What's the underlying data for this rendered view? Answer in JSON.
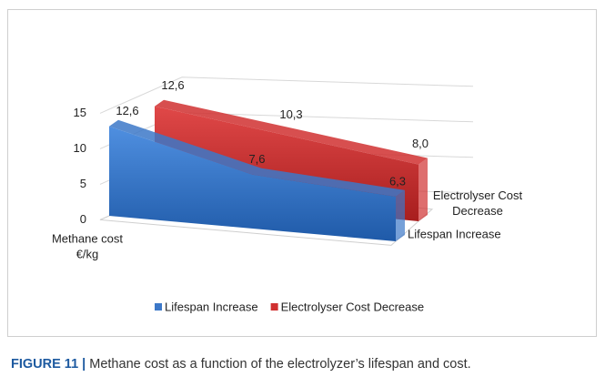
{
  "chart_data": {
    "type": "area3d",
    "categories": [
      null,
      null,
      null
    ],
    "ylabel_lines": [
      "Methane cost",
      "€/kg"
    ],
    "ylim": [
      0,
      15
    ],
    "yticks": [
      0,
      5,
      10,
      15
    ],
    "grid": true,
    "legend": "bottom",
    "series": [
      {
        "name": "Lifespan Increase",
        "color": "#3c78c8",
        "values": [
          12.6,
          7.6,
          6.3
        ],
        "value_labels": [
          "12,6",
          "7,6",
          "6,3"
        ]
      },
      {
        "name": "Electrolyser Cost Decrease",
        "color": "#d03030",
        "values": [
          12.6,
          10.3,
          8.0
        ],
        "value_labels": [
          "12,6",
          "10,3",
          "8,0"
        ]
      }
    ]
  },
  "caption": {
    "label": "FIGURE 11 |",
    "text": "Methane cost as a function of the electrolyzer’s lifespan and cost."
  }
}
